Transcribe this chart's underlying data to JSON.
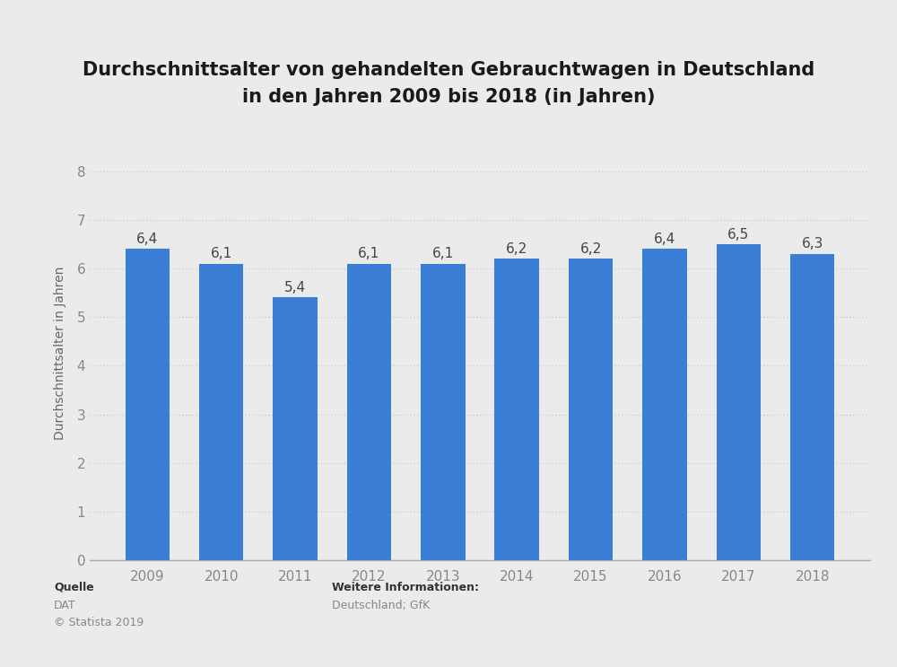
{
  "years": [
    "2009",
    "2010",
    "2011",
    "2012",
    "2013",
    "2014",
    "2015",
    "2016",
    "2017",
    "2018"
  ],
  "values": [
    6.4,
    6.1,
    5.4,
    6.1,
    6.1,
    6.2,
    6.2,
    6.4,
    6.5,
    6.3
  ],
  "bar_color": "#3a7fd5",
  "title_line1": "Durchschnittsalter von gehandelten Gebrauchtwagen in Deutschland",
  "title_line2": "in den Jahren 2009 bis 2018 (in Jahren)",
  "ylabel": "Durchschnittsalter in Jahren",
  "ylim": [
    0,
    8.5
  ],
  "yticks": [
    0,
    1,
    2,
    3,
    4,
    5,
    6,
    7,
    8
  ],
  "background_color": "#ebebeb",
  "plot_bg_color": "#ebebeb",
  "grid_color": "#d0d0d0",
  "label_fontsize": 11,
  "title_fontsize": 15,
  "tick_fontsize": 11,
  "ylabel_fontsize": 10,
  "footer_left_bold": "Quelle",
  "footer_left_line1": "DAT",
  "footer_left_line2": "© Statista 2019",
  "footer_right_bold": "Weitere Informationen:",
  "footer_right_line1": "Deutschland; GfK"
}
